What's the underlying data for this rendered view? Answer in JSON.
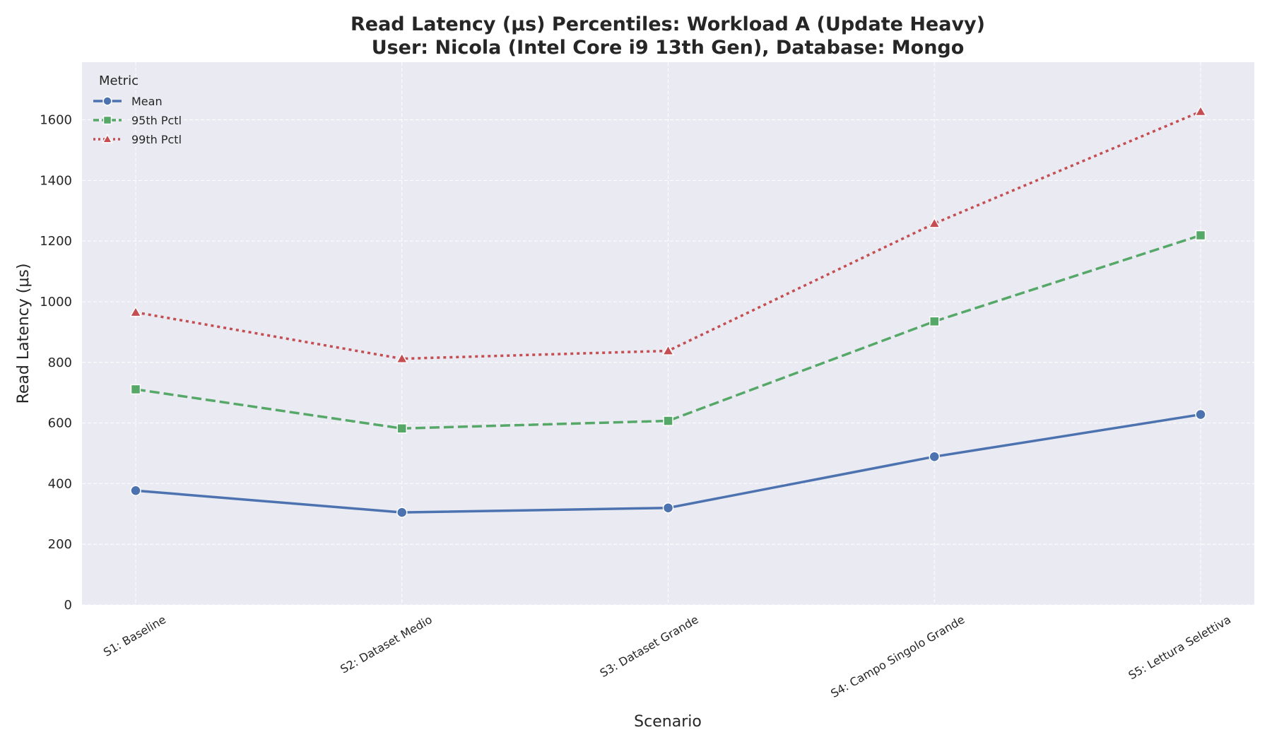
{
  "chart_data": {
    "type": "line",
    "title_line1": "Read Latency (μs) Percentiles: Workload A (Update Heavy)",
    "title_line2": "User: Nicola (Intel Core i9 13th Gen), Database: Mongo",
    "xlabel": "Scenario",
    "ylabel": "Read Latency (μs)",
    "categories": [
      "S1: Baseline",
      "S2: Dataset Medio",
      "S3: Dataset Grande",
      "S4: Campo Singolo Grande",
      "S5: Lettura Selettiva"
    ],
    "ylim": [
      0,
      1790
    ],
    "yticks": [
      0,
      200,
      400,
      600,
      800,
      1000,
      1200,
      1400,
      1600
    ],
    "grid": true,
    "legend": {
      "title": "Metric",
      "placement": "top-left"
    },
    "series": [
      {
        "name": "Mean",
        "values": [
          377,
          305,
          320,
          489,
          628
        ],
        "color": "#4c72b0",
        "marker": "circle",
        "dash": "solid"
      },
      {
        "name": "95th Pctl",
        "values": [
          711,
          582,
          607,
          935,
          1219
        ],
        "color": "#55a868",
        "marker": "square",
        "dash": "dashed"
      },
      {
        "name": "99th Pctl",
        "values": [
          965,
          812,
          838,
          1258,
          1627
        ],
        "color": "#c44e52",
        "marker": "triangle",
        "dash": "dotted"
      }
    ],
    "colors": {
      "plot_background": "#eaeaf2",
      "grid": "#ffffff",
      "text": "#262626"
    }
  }
}
